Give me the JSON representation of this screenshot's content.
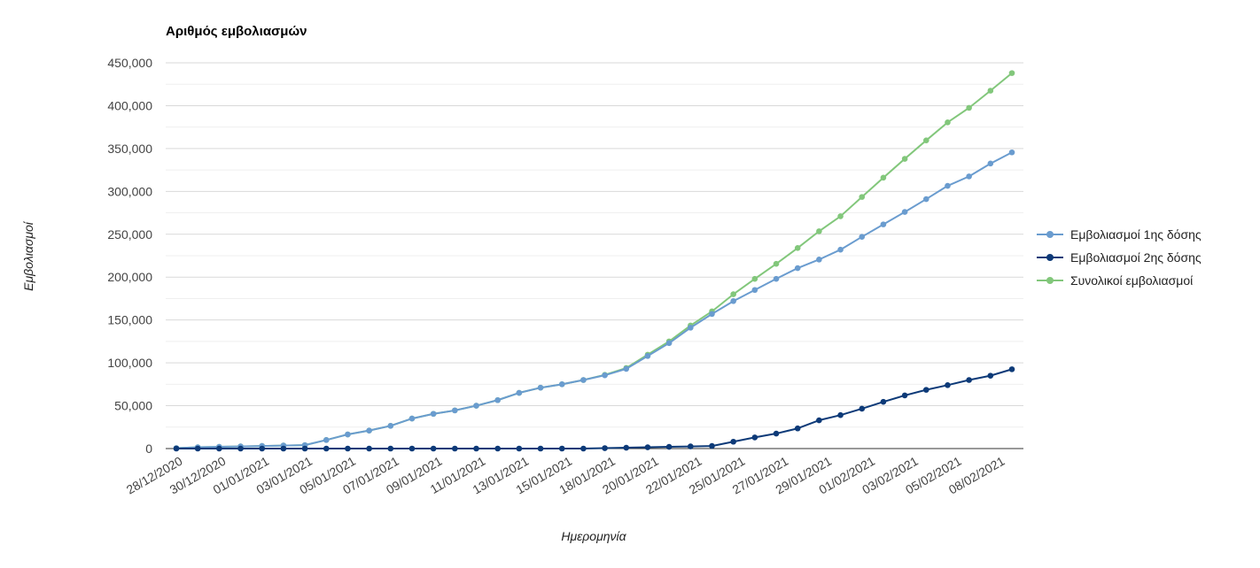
{
  "chart_data": {
    "type": "line",
    "title": "Αριθμός εμβολιασμών",
    "xlabel": "Ημερομηνία",
    "ylabel": "Εμβολιασμοί",
    "ylim": [
      0,
      450000
    ],
    "yticks": [
      0,
      50000,
      100000,
      150000,
      200000,
      250000,
      300000,
      350000,
      400000,
      450000
    ],
    "ytick_labels": [
      "0",
      "50,000",
      "100,000",
      "150,000",
      "200,000",
      "250,000",
      "300,000",
      "350,000",
      "400,000",
      "450,000"
    ],
    "x_tick_labels": [
      "28/12/2020",
      "30/12/2020",
      "01/01/2021",
      "03/01/2021",
      "05/01/2021",
      "07/01/2021",
      "09/01/2021",
      "11/01/2021",
      "13/01/2021",
      "15/01/2021",
      "18/01/2021",
      "20/01/2021",
      "22/01/2021",
      "25/01/2021",
      "27/01/2021",
      "29/01/2021",
      "01/02/2021",
      "03/02/2021",
      "05/02/2021",
      "08/02/2021"
    ],
    "grid": true,
    "legend_position": "right",
    "series": [
      {
        "name": "Εμβολιασμοί 1ης δόσης",
        "color": "#6a9ccf",
        "values": [
          500,
          1500,
          2000,
          2500,
          3000,
          3500,
          4000,
          10000,
          16500,
          21000,
          26500,
          35000,
          40500,
          44500,
          50000,
          56500,
          65000,
          71000,
          75000,
          80000,
          85500,
          93000,
          108000,
          123000,
          141000,
          157000,
          172000,
          185000,
          198000,
          210500,
          220500,
          232000,
          247000,
          261500,
          276000,
          291000,
          306500,
          317500,
          332500,
          345500
        ]
      },
      {
        "name": "Εμβολιασμοί 2ης δόσης",
        "color": "#0d3a78",
        "values": [
          0,
          0,
          0,
          0,
          0,
          0,
          0,
          0,
          0,
          0,
          0,
          0,
          0,
          0,
          0,
          0,
          0,
          0,
          0,
          0,
          500,
          1000,
          1500,
          2000,
          2500,
          3000,
          8000,
          13000,
          17500,
          23500,
          33000,
          39000,
          46500,
          54500,
          62000,
          68500,
          74000,
          80000,
          85000,
          92500
        ]
      },
      {
        "name": "Συνολικοί εμβολιασμοί",
        "color": "#82c77b",
        "values": [
          500,
          1500,
          2000,
          2500,
          3000,
          3500,
          4000,
          10000,
          16500,
          21000,
          26500,
          35000,
          40500,
          44500,
          50000,
          56500,
          65000,
          71000,
          75000,
          80000,
          86000,
          94000,
          109500,
          125000,
          143500,
          160000,
          180000,
          198000,
          215500,
          234000,
          253500,
          271000,
          293500,
          316000,
          338000,
          359500,
          380500,
          397500,
          417500,
          438000
        ]
      }
    ]
  }
}
